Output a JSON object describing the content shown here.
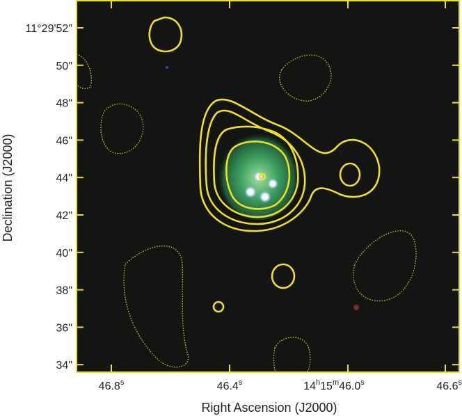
{
  "axes": {
    "x_label": "Right Ascension (J2000)",
    "y_label": "Declination (J2000)",
    "x_ticks": [
      [
        "46.8",
        "s"
      ],
      [
        "46.4",
        "s"
      ],
      [
        "14",
        "h",
        "15",
        "m",
        "46.0",
        "s"
      ],
      [
        "46.6",
        "s"
      ]
    ],
    "y_ticks": [
      "11°29'52\"",
      "50\"",
      "48\"",
      "46\"",
      "44\"",
      "42\"",
      "40\"",
      "38\"",
      "36\"",
      "34\""
    ]
  }
}
